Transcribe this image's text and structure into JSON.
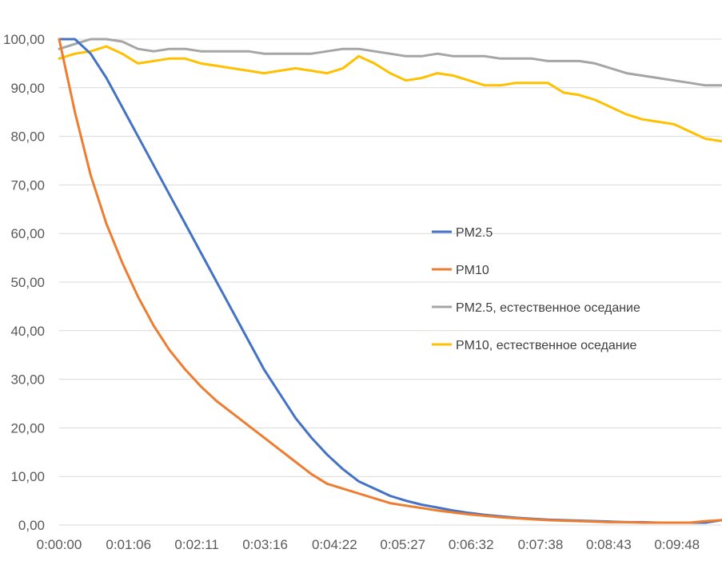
{
  "chart_data": {
    "type": "line",
    "title": "",
    "xlabel": "",
    "ylabel": "",
    "x_ticks": [
      "0:00:00",
      "0:01:06",
      "0:02:11",
      "0:03:16",
      "0:04:22",
      "0:05:27",
      "0:06:32",
      "0:07:38",
      "0:08:43",
      "0:09:48"
    ],
    "y_ticks": [
      "0,00",
      "10,00",
      "20,00",
      "30,00",
      "40,00",
      "50,00",
      "60,00",
      "70,00",
      "80,00",
      "90,00",
      "100,00"
    ],
    "ylim": [
      0,
      100
    ],
    "xlim": [
      "0:00:00",
      "0:10:30"
    ],
    "grid": "horizontal",
    "legend_position": "center-right",
    "x": [
      "0:00:00",
      "0:00:15",
      "0:00:30",
      "0:00:45",
      "0:01:00",
      "0:01:15",
      "0:01:30",
      "0:01:45",
      "0:02:00",
      "0:02:15",
      "0:02:30",
      "0:02:45",
      "0:03:00",
      "0:03:15",
      "0:03:30",
      "0:03:45",
      "0:04:00",
      "0:04:15",
      "0:04:30",
      "0:04:45",
      "0:05:00",
      "0:05:15",
      "0:05:30",
      "0:05:45",
      "0:06:00",
      "0:06:15",
      "0:06:30",
      "0:06:45",
      "0:07:00",
      "0:07:15",
      "0:07:30",
      "0:07:45",
      "0:08:00",
      "0:08:15",
      "0:08:30",
      "0:08:45",
      "0:09:00",
      "0:09:15",
      "0:09:30",
      "0:09:45",
      "0:10:00",
      "0:10:15",
      "0:10:30"
    ],
    "series": [
      {
        "name": "PM2.5",
        "color": "#4472C4",
        "values": [
          100,
          100,
          97,
          92,
          86,
          80,
          74,
          68,
          62,
          56,
          50,
          44,
          38,
          32,
          27,
          22,
          18,
          14.5,
          11.5,
          9,
          7.5,
          6,
          5,
          4.2,
          3.6,
          3,
          2.5,
          2.1,
          1.8,
          1.5,
          1.3,
          1.1,
          1,
          0.9,
          0.8,
          0.7,
          0.6,
          0.6,
          0.5,
          0.5,
          0.5,
          0.5,
          1
        ]
      },
      {
        "name": "PM10",
        "color": "#ED7D31",
        "values": [
          100,
          85,
          72,
          62,
          54,
          47,
          41,
          36,
          32,
          28.5,
          25.5,
          23,
          20.5,
          18,
          15.5,
          13,
          10.5,
          8.5,
          7.5,
          6.5,
          5.5,
          4.5,
          4,
          3.5,
          3,
          2.6,
          2.2,
          1.9,
          1.6,
          1.4,
          1.2,
          1,
          0.9,
          0.8,
          0.7,
          0.6,
          0.6,
          0.5,
          0.5,
          0.5,
          0.5,
          0.8,
          1
        ]
      },
      {
        "name": "PM2.5, естественное оседание",
        "color": "#A5A5A5",
        "values": [
          98,
          99,
          100,
          100,
          99.5,
          98,
          97.5,
          98,
          98,
          97.5,
          97.5,
          97.5,
          97.5,
          97,
          97,
          97,
          97,
          97.5,
          98,
          98,
          97.5,
          97,
          96.5,
          96.5,
          97,
          96.5,
          96.5,
          96.5,
          96,
          96,
          96,
          95.5,
          95.5,
          95.5,
          95,
          94,
          93,
          92.5,
          92,
          91.5,
          91,
          90.5,
          90.5
        ]
      },
      {
        "name": "PM10, естественное оседание",
        "color": "#FFC000",
        "values": [
          96,
          97,
          97.5,
          98.5,
          97,
          95,
          95.5,
          96,
          96,
          95,
          94.5,
          94,
          93.5,
          93,
          93.5,
          94,
          93.5,
          93,
          94,
          96.5,
          95,
          93,
          91.5,
          92,
          93,
          92.5,
          91.5,
          90.5,
          90.5,
          91,
          91,
          91,
          89,
          88.5,
          87.5,
          86,
          84.5,
          83.5,
          83,
          82.5,
          81,
          79.5,
          79
        ]
      }
    ]
  }
}
